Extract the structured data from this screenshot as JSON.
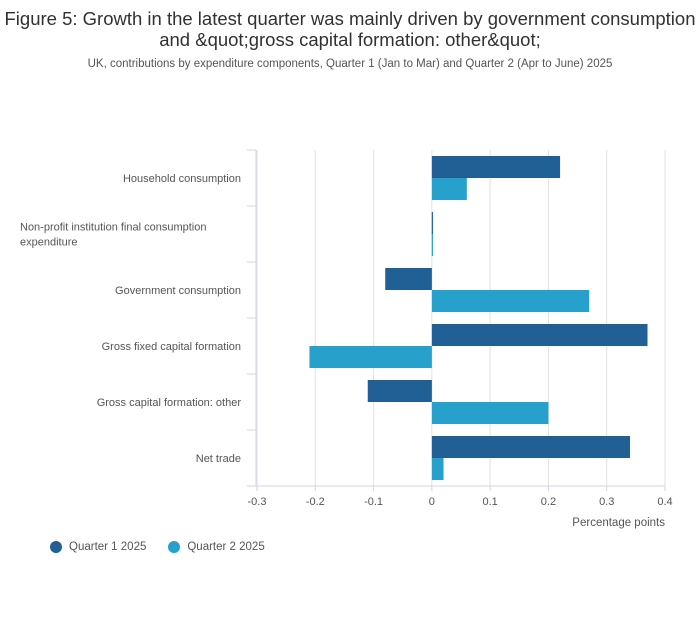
{
  "header": {
    "title": "Figure 5: Growth in the latest quarter was mainly driven by government consumption and &quot;gross capital formation: other&quot;",
    "subtitle": "UK, contributions by expenditure components, Quarter 1 (Jan to Mar) and Quarter 2 (Apr to June) 2025"
  },
  "chart_data": {
    "type": "bar",
    "orientation": "horizontal",
    "categories": [
      "Household consumption",
      "Non-profit institution final consumption expenditure",
      "Government consumption",
      "Gross fixed capital formation",
      "Gross capital formation: other",
      "Net trade"
    ],
    "series": [
      {
        "name": "Quarter 1 2025",
        "color": "#206095",
        "values": [
          0.22,
          0.0,
          -0.08,
          0.37,
          -0.11,
          0.34
        ]
      },
      {
        "name": "Quarter 2 2025",
        "color": "#27a0cc",
        "values": [
          0.06,
          0.0,
          0.27,
          -0.21,
          0.2,
          0.02
        ]
      }
    ],
    "xlabel": "Percentage points",
    "xlim": [
      -0.3,
      0.4
    ],
    "xticks": [
      "-0.3",
      "-0.2",
      "-0.1",
      "0",
      "0.1",
      "0.2",
      "0.3",
      "0.4"
    ],
    "grid": true,
    "legend_position": "bottom-left"
  }
}
